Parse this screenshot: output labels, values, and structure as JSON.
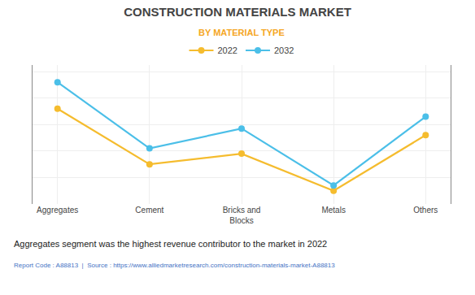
{
  "chart_data": {
    "type": "line",
    "title": "CONSTRUCTION MATERIALS MARKET",
    "subtitle": "BY MATERIAL TYPE",
    "categories": [
      "Aggregates",
      "Cement",
      "Bricks and\nBlocks",
      "Metals",
      "Others"
    ],
    "series": [
      {
        "name": "2022",
        "color": "#F5BC2E",
        "marker": "circle",
        "line_style": "solid",
        "values": [
          0.72,
          0.3,
          0.38,
          0.1,
          0.52
        ]
      },
      {
        "name": "2032",
        "color": "#4BBFE8",
        "marker": "circle",
        "line_style": "solid",
        "values": [
          0.92,
          0.42,
          0.57,
          0.14,
          0.66
        ]
      }
    ],
    "ylim": [
      0.0,
      1.05
    ],
    "yticks": [
      0,
      0.2,
      0.4,
      0.6,
      0.8,
      1.0
    ],
    "grid": true,
    "legend": "top",
    "tick_labels": "x",
    "annotations": [
      "Aggregates segment was the highest revenue contributor to the market in 2022",
      "Report Code : A88813  |  Source : https://www.alliedmarketresearch.com/construction-materials-market-A88813"
    ]
  }
}
